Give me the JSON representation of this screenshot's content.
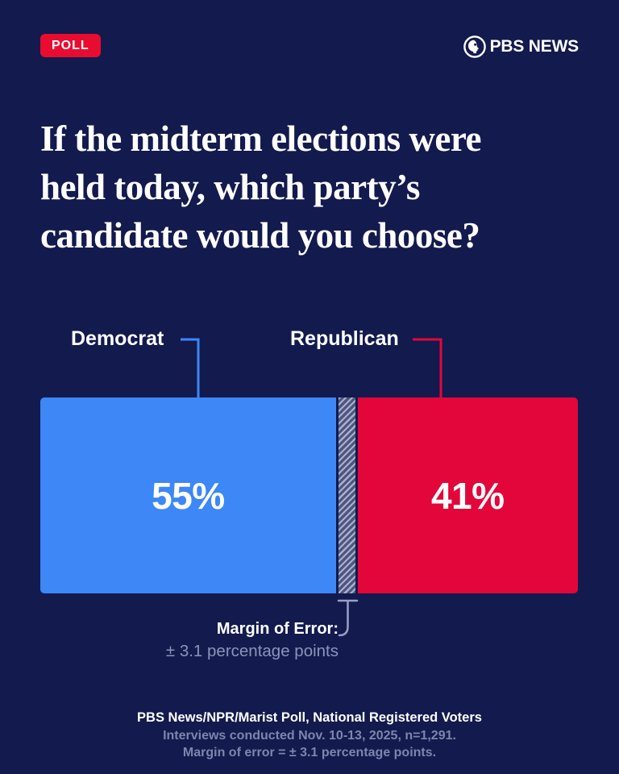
{
  "badge": {
    "label": "POLL",
    "bg_color": "#e90c31"
  },
  "brand": {
    "name": "PBS NEWS"
  },
  "headline": {
    "full_text": "If the midterm elections were held today, which party’s candidate would you choose?",
    "lines": [
      "If the midterm elections were",
      "held today, which party’s",
      "candidate would you choose?"
    ]
  },
  "chart_data": {
    "type": "bar",
    "orientation": "horizontal-stacked",
    "title": "If the midterm elections were held today, which party’s candidate would you choose?",
    "categories": [
      "Democrat",
      "Republican"
    ],
    "values": [
      55,
      41
    ],
    "unit": "percent",
    "data_labels": [
      "55%",
      "41%"
    ],
    "gap_pct": 4,
    "margin_of_error": 3.1,
    "colors": {
      "background": "#121a4e",
      "democrat": "#3d87f7",
      "republican": "#e3063a",
      "moe_hatch_light": "#aab1cb",
      "moe_hatch_dark": "#4e5580",
      "muted_text": "#8b94bb"
    },
    "legend_position": "above-bar-with-connectors",
    "grid": false
  },
  "chart": {
    "democrat_label": "Democrat",
    "republican_label": "Republican",
    "democrat_value": "55%",
    "republican_value": "41%",
    "moe_title": "Margin of Error:",
    "moe_detail": "± 3.1 percentage points"
  },
  "footer": {
    "line1": "PBS News/NPR/Marist Poll, National Registered Voters",
    "line2": "Interviews conducted Nov. 10-13, 2025, n=1,291.",
    "line3": "Margin of error = ± 3.1 percentage points."
  }
}
